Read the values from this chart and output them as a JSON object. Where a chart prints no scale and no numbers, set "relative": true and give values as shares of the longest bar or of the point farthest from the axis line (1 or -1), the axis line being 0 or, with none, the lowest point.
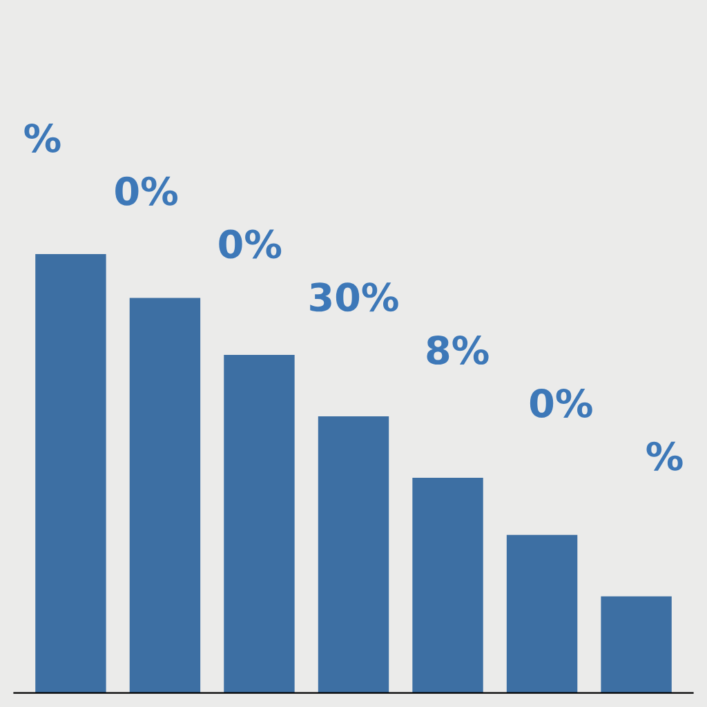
{
  "chart_data": {
    "type": "bar",
    "relative": true,
    "categories": [
      null,
      null,
      null,
      null,
      null,
      null,
      null
    ],
    "values": [
      1,
      0.9,
      0.77,
      0.63,
      0.49,
      0.36,
      0.22
    ],
    "color": "#3d6fa3",
    "annotations": [
      "%",
      "0%",
      "0%",
      "30%",
      "8%",
      "0%",
      "%"
    ]
  }
}
